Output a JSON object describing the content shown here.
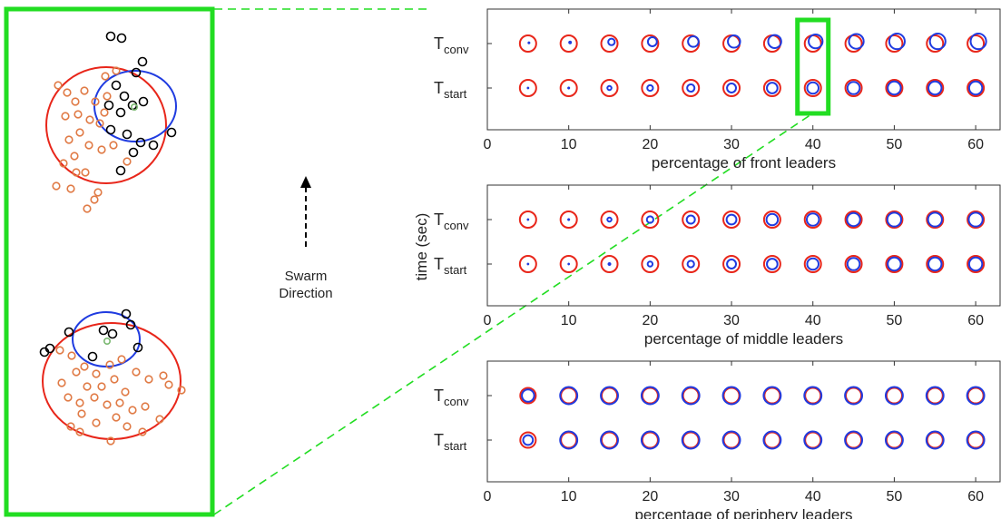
{
  "swarm_label": [
    "Swarm",
    "Direction"
  ],
  "y_axis_label": "time (sec)",
  "colors": {
    "highlight": "#22dd22",
    "red_circle": "#e8261a",
    "blue_circle": "#1f3be0",
    "agent_black": "#000000",
    "agent_orange": "#e07a45",
    "agent_green": "#7ab870",
    "axis": "#333333"
  },
  "chart_data": [
    {
      "type": "scatter",
      "title": "",
      "xlabel": "percentage of   front leaders",
      "ylabel": "",
      "xlim": [
        0,
        63
      ],
      "xticks": [
        0,
        10,
        20,
        30,
        40,
        50,
        60
      ],
      "rows": [
        {
          "label_main": "T",
          "label_sub": "conv"
        },
        {
          "label_main": "T",
          "label_sub": "start"
        }
      ],
      "x": [
        5,
        10,
        15,
        20,
        25,
        30,
        35,
        40,
        45,
        50,
        55,
        60
      ],
      "series": [
        {
          "name": "",
          "color": "red",
          "row": "conv",
          "size": [
            1,
            1,
            1,
            1,
            1,
            1,
            1,
            1,
            1,
            1,
            1,
            1
          ],
          "offset": [
            0,
            0,
            0,
            0,
            0,
            0,
            0,
            0,
            0,
            0,
            0,
            0
          ]
        },
        {
          "name": "",
          "color": "blue",
          "row": "conv",
          "size": [
            0.15,
            0.2,
            0.4,
            0.55,
            0.65,
            0.75,
            0.8,
            0.85,
            0.9,
            0.95,
            0.95,
            0.95
          ],
          "offset": [
            0.2,
            0.3,
            0.45,
            0.5,
            0.55,
            0.55,
            0.55,
            0.6,
            0.6,
            0.6,
            0.6,
            0.6
          ]
        },
        {
          "name": "",
          "color": "red",
          "row": "start",
          "size": [
            1,
            1,
            1,
            1,
            1,
            1,
            1,
            1,
            1,
            1,
            1,
            1
          ],
          "offset": [
            0,
            0,
            0,
            0,
            0,
            0,
            0,
            0,
            0,
            0,
            0,
            0
          ]
        },
        {
          "name": "",
          "color": "blue",
          "row": "start",
          "size": [
            0.1,
            0.15,
            0.25,
            0.35,
            0.45,
            0.55,
            0.65,
            0.7,
            0.75,
            0.8,
            0.8,
            0.8
          ],
          "offset": [
            0,
            0,
            0,
            0,
            0,
            0,
            0,
            0,
            0,
            0,
            0,
            0
          ]
        }
      ],
      "highlight_x": 40
    },
    {
      "type": "scatter",
      "title": "",
      "xlabel": "percentage of  middle leaders",
      "ylabel": "time (sec)",
      "xlim": [
        0,
        63
      ],
      "xticks": [
        0,
        10,
        20,
        30,
        40,
        50,
        60
      ],
      "rows": [
        {
          "label_main": "T",
          "label_sub": "conv"
        },
        {
          "label_main": "T",
          "label_sub": "start"
        }
      ],
      "x": [
        5,
        10,
        15,
        20,
        25,
        30,
        35,
        40,
        45,
        50,
        55,
        60
      ],
      "series": [
        {
          "name": "",
          "color": "red",
          "row": "conv",
          "size": [
            1,
            1,
            1,
            1,
            1,
            1,
            1,
            1,
            1,
            1,
            1,
            1
          ],
          "offset": [
            0,
            0,
            0,
            0,
            0,
            0,
            0,
            0,
            0,
            0,
            0,
            0
          ]
        },
        {
          "name": "",
          "color": "blue",
          "row": "conv",
          "size": [
            0.1,
            0.15,
            0.25,
            0.4,
            0.5,
            0.6,
            0.7,
            0.75,
            0.8,
            0.85,
            0.85,
            0.85
          ],
          "offset": [
            0,
            0,
            0,
            0,
            0,
            0,
            0,
            0,
            0,
            0,
            0,
            0
          ]
        },
        {
          "name": "",
          "color": "red",
          "row": "start",
          "size": [
            1,
            1,
            1,
            1,
            1,
            1,
            1,
            1,
            1,
            1,
            1,
            1
          ],
          "offset": [
            0,
            0,
            0,
            0,
            0,
            0,
            0,
            0,
            0,
            0,
            0,
            0
          ]
        },
        {
          "name": "",
          "color": "blue",
          "row": "start",
          "size": [
            0.08,
            0.12,
            0.2,
            0.3,
            0.4,
            0.55,
            0.65,
            0.7,
            0.75,
            0.8,
            0.8,
            0.8
          ],
          "offset": [
            0,
            0,
            0,
            0,
            0,
            0,
            0,
            0,
            0,
            0,
            0,
            0
          ]
        }
      ]
    },
    {
      "type": "scatter",
      "title": "",
      "xlabel": "percentage of periphery leaders",
      "ylabel": "",
      "xlim": [
        0,
        63
      ],
      "xticks": [
        0,
        10,
        20,
        30,
        40,
        50,
        60
      ],
      "rows": [
        {
          "label_main": "T",
          "label_sub": "conv"
        },
        {
          "label_main": "T",
          "label_sub": "start"
        }
      ],
      "x": [
        5,
        10,
        15,
        20,
        25,
        30,
        35,
        40,
        45,
        50,
        55,
        60
      ],
      "series": [
        {
          "name": "",
          "color": "red",
          "row": "conv",
          "size": [
            0.95,
            0.95,
            0.95,
            0.95,
            0.95,
            0.95,
            0.95,
            0.95,
            0.95,
            0.95,
            0.95,
            0.95
          ],
          "offset": [
            0,
            0,
            0,
            0,
            0,
            0,
            0,
            0,
            0,
            0,
            0,
            0
          ]
        },
        {
          "name": "",
          "color": "blue",
          "row": "conv",
          "size": [
            0.75,
            1.05,
            1.05,
            1.05,
            1.05,
            1.05,
            1.05,
            1.05,
            1.05,
            1.05,
            1.05,
            1.05
          ],
          "offset": [
            0,
            0,
            0,
            0,
            0,
            0,
            0,
            0,
            0,
            0,
            0,
            0
          ]
        },
        {
          "name": "",
          "color": "red",
          "row": "start",
          "size": [
            0.95,
            0.95,
            0.95,
            0.95,
            0.95,
            0.95,
            0.95,
            0.95,
            0.95,
            0.95,
            0.95,
            0.95
          ],
          "offset": [
            0,
            0,
            0,
            0,
            0,
            0,
            0,
            0,
            0,
            0,
            0,
            0
          ]
        },
        {
          "name": "",
          "color": "blue",
          "row": "start",
          "size": [
            0.6,
            1.05,
            1.05,
            1.05,
            1.05,
            1.05,
            1.05,
            1.05,
            1.05,
            1.05,
            1.05,
            1.05
          ],
          "offset": [
            0,
            0,
            0,
            0,
            0,
            0,
            0,
            0,
            0,
            0,
            0,
            0
          ]
        }
      ]
    }
  ]
}
